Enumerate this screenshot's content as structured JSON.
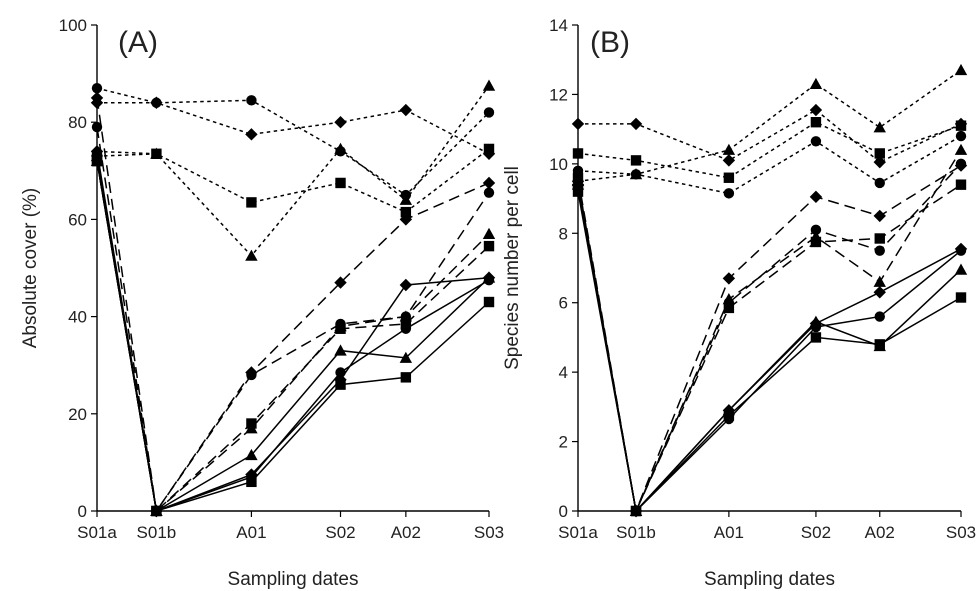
{
  "colors": {
    "ink": "#000000",
    "text": "#222222",
    "background": "#ffffff"
  },
  "chart_data": [
    {
      "type": "line",
      "panel_label": "(A)",
      "xlabel": "Sampling dates",
      "ylabel": "Absolute cover (%)",
      "categories": [
        "S01a",
        "S01b",
        "A01",
        "S02",
        "A02",
        "S03"
      ],
      "x_positions": [
        0,
        1,
        2.6,
        4.1,
        5.2,
        6.6
      ],
      "ylim": [
        0,
        100
      ],
      "yticks": [
        0,
        20,
        40,
        60,
        80,
        100
      ],
      "grid": false,
      "series": [
        {
          "style": "dotted",
          "marker": "triangle",
          "values": [
            74,
            73.5,
            52.5,
            74.5,
            64,
            87.5
          ]
        },
        {
          "style": "dotted",
          "marker": "circle",
          "values": [
            87,
            84,
            84.5,
            74,
            65,
            82
          ]
        },
        {
          "style": "dotted",
          "marker": "diamond",
          "values": [
            84,
            84,
            77.5,
            80,
            82.5,
            73.5
          ]
        },
        {
          "style": "dotted",
          "marker": "square",
          "values": [
            73,
            73.5,
            63.5,
            67.5,
            61.5,
            74.5
          ]
        },
        {
          "style": "dashed",
          "marker": "diamond",
          "values": [
            85,
            0,
            28.5,
            47,
            60,
            67.5
          ]
        },
        {
          "style": "dashed",
          "marker": "circle",
          "values": [
            79,
            0,
            28,
            38.5,
            40,
            65.5
          ]
        },
        {
          "style": "dashed",
          "marker": "triangle",
          "values": [
            73,
            0,
            17,
            38,
            40,
            57
          ]
        },
        {
          "style": "dashed",
          "marker": "square",
          "values": [
            72,
            0,
            18,
            37.5,
            38.5,
            54.5
          ]
        },
        {
          "style": "solid",
          "marker": "triangle",
          "values": [
            72,
            0,
            11.5,
            33,
            31.5,
            48
          ]
        },
        {
          "style": "solid",
          "marker": "diamond",
          "values": [
            74,
            0,
            7.5,
            27,
            46.5,
            48
          ]
        },
        {
          "style": "solid",
          "marker": "circle",
          "values": [
            72.5,
            0,
            7,
            28.5,
            37.5,
            47.5
          ]
        },
        {
          "style": "solid",
          "marker": "square",
          "values": [
            72,
            0,
            6,
            26,
            27.5,
            43
          ]
        }
      ]
    },
    {
      "type": "line",
      "panel_label": "(B)",
      "xlabel": "Sampling dates",
      "ylabel": "Species number per cell",
      "categories": [
        "S01a",
        "S01b",
        "A01",
        "S02",
        "A02",
        "S03"
      ],
      "x_positions": [
        0,
        1,
        2.6,
        4.1,
        5.2,
        6.6
      ],
      "ylim": [
        0,
        14
      ],
      "yticks": [
        0,
        2,
        4,
        6,
        8,
        10,
        12,
        14
      ],
      "grid": false,
      "series": [
        {
          "style": "dotted",
          "marker": "triangle",
          "values": [
            9.5,
            9.7,
            10.4,
            12.3,
            11.05,
            12.7
          ]
        },
        {
          "style": "dotted",
          "marker": "diamond",
          "values": [
            11.15,
            11.15,
            10.1,
            11.55,
            10.05,
            11.15
          ]
        },
        {
          "style": "dotted",
          "marker": "square",
          "values": [
            10.3,
            10.1,
            9.6,
            11.2,
            10.3,
            11.1
          ]
        },
        {
          "style": "dotted",
          "marker": "circle",
          "values": [
            9.8,
            9.7,
            9.15,
            10.65,
            9.45,
            10.8
          ]
        },
        {
          "style": "dashed",
          "marker": "diamond",
          "values": [
            9.4,
            0,
            6.7,
            9.05,
            8.5,
            9.95
          ]
        },
        {
          "style": "dashed",
          "marker": "circle",
          "values": [
            9.3,
            0,
            6.0,
            8.1,
            7.5,
            10.0
          ]
        },
        {
          "style": "dashed",
          "marker": "triangle",
          "values": [
            9.5,
            0,
            6.1,
            7.9,
            6.6,
            10.4
          ]
        },
        {
          "style": "dashed",
          "marker": "square",
          "values": [
            9.6,
            0,
            5.85,
            7.75,
            7.85,
            9.4
          ]
        },
        {
          "style": "solid",
          "marker": "triangle",
          "values": [
            9.4,
            0,
            2.9,
            5.45,
            4.75,
            6.95
          ]
        },
        {
          "style": "solid",
          "marker": "diamond",
          "values": [
            9.5,
            0,
            2.9,
            5.4,
            6.3,
            7.55
          ]
        },
        {
          "style": "solid",
          "marker": "circle",
          "values": [
            9.3,
            0,
            2.65,
            5.3,
            5.6,
            7.5
          ]
        },
        {
          "style": "solid",
          "marker": "square",
          "values": [
            9.2,
            0,
            2.75,
            5.0,
            4.8,
            6.15
          ]
        }
      ]
    }
  ]
}
